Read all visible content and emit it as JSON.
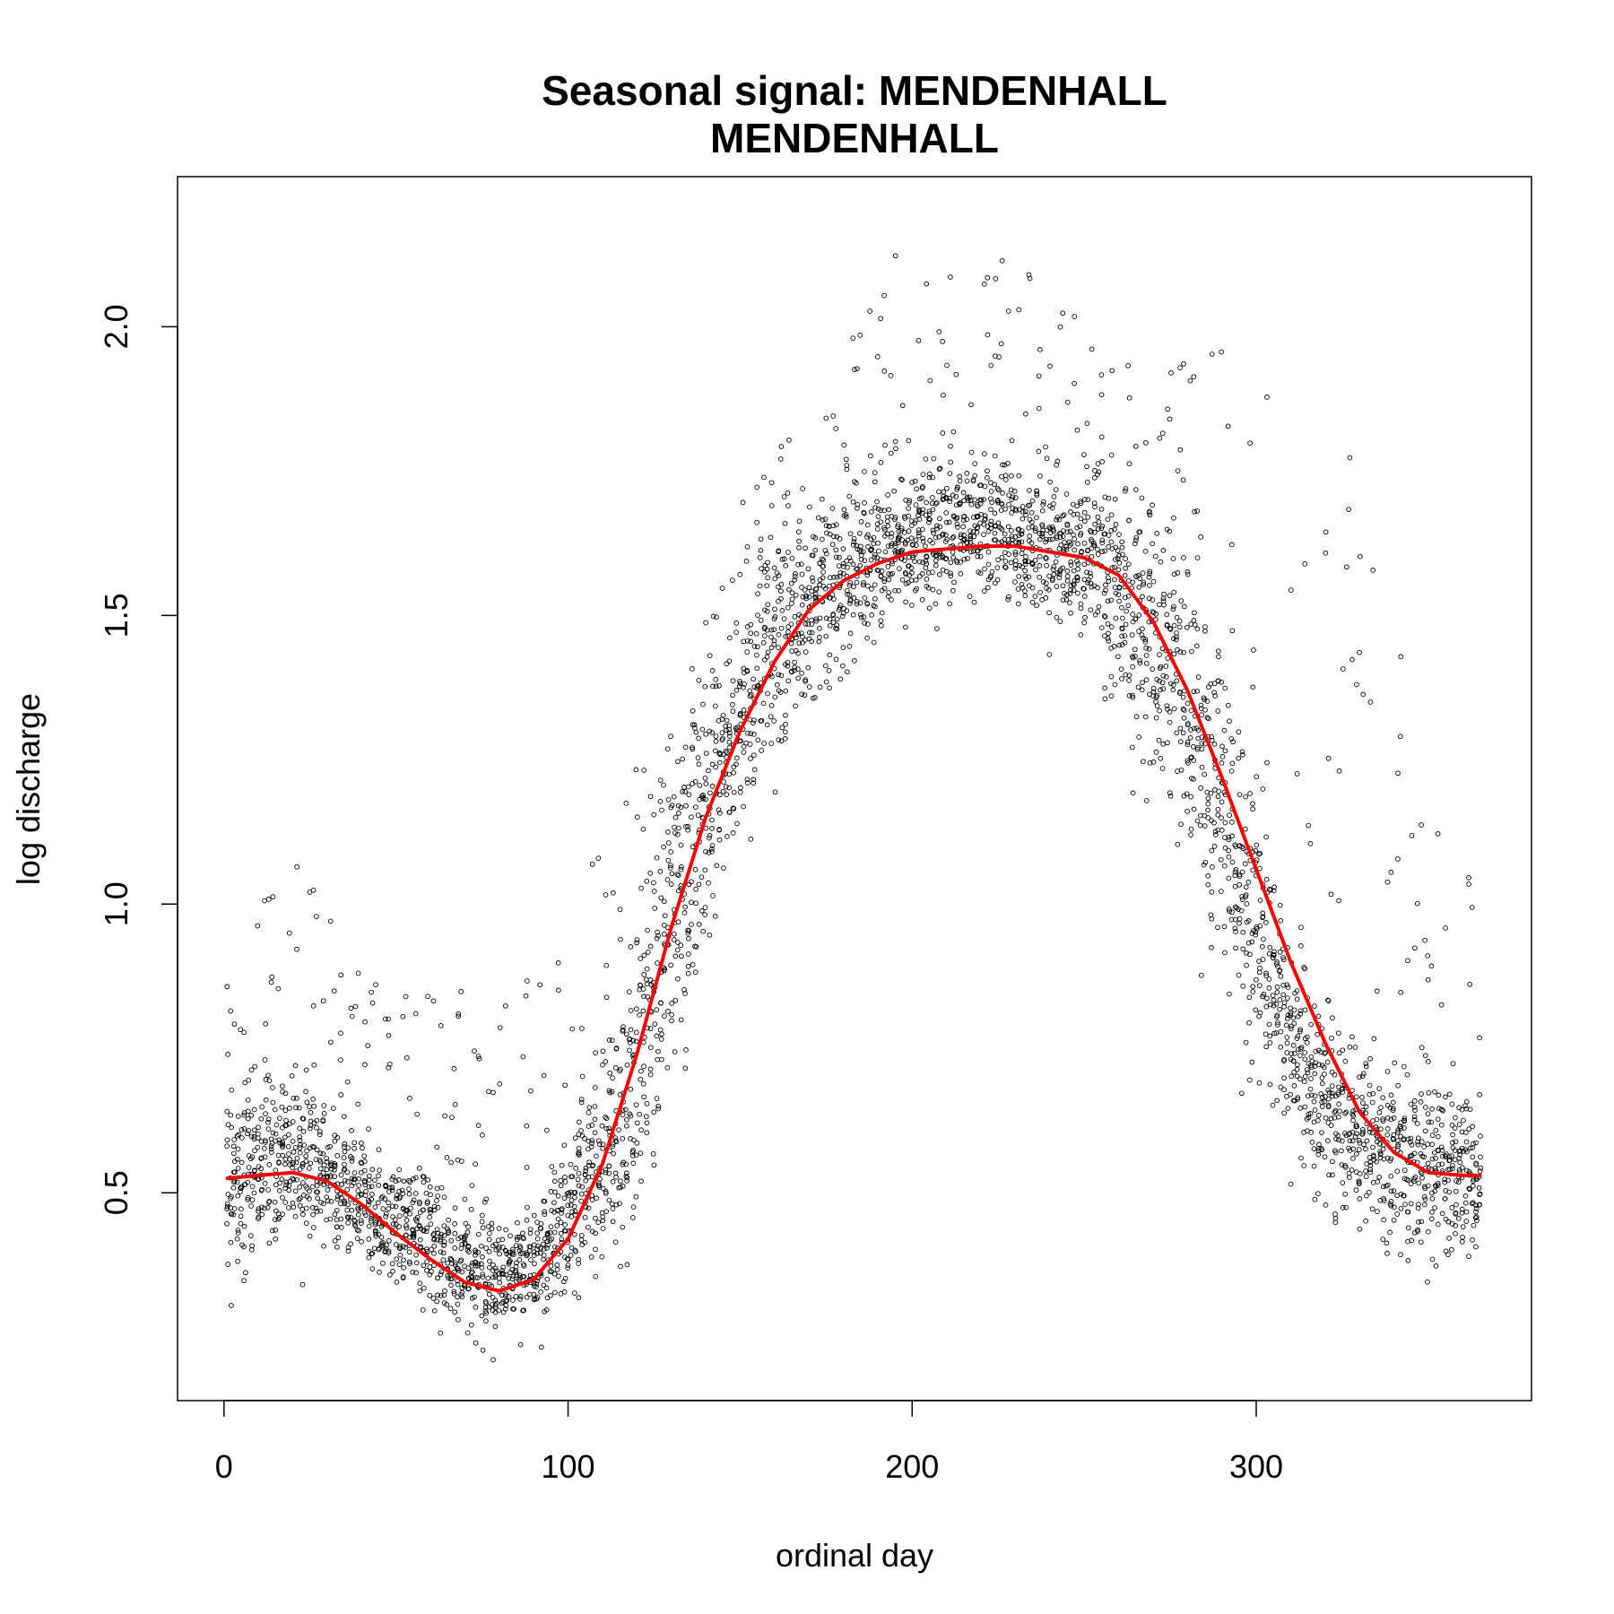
{
  "chart_data": {
    "type": "scatter",
    "title_line1": "Seasonal signal: MENDENHALL",
    "title_line2": "MENDENHALL",
    "xlabel": "ordinal day",
    "ylabel": "log discharge",
    "xlim": [
      -13.5,
      380
    ],
    "ylim": [
      0.14,
      2.26
    ],
    "x_ticks": [
      0,
      100,
      200,
      300
    ],
    "x_tick_labels": [
      "0",
      "100",
      "200",
      "300"
    ],
    "y_ticks": [
      0.5,
      1.0,
      1.5,
      2.0
    ],
    "y_tick_labels": [
      "0.5",
      "1.0",
      "1.5",
      "2.0"
    ],
    "grid": false,
    "colors": {
      "points": "#000000",
      "smooth_line": "#ff0000"
    },
    "series": [
      {
        "kind": "points",
        "note": "approximately 10000 daily observations; envelope given as [day, lower, typical, upper] in log discharge",
        "envelope": [
          [
            1,
            0.25,
            0.52,
            0.95
          ],
          [
            15,
            0.3,
            0.55,
            1.05
          ],
          [
            25,
            0.32,
            0.55,
            1.1
          ],
          [
            40,
            0.3,
            0.48,
            0.9
          ],
          [
            60,
            0.24,
            0.42,
            0.85
          ],
          [
            75,
            0.2,
            0.36,
            0.85
          ],
          [
            85,
            0.22,
            0.35,
            0.85
          ],
          [
            100,
            0.24,
            0.45,
            1.0
          ],
          [
            115,
            0.3,
            0.6,
            1.15
          ],
          [
            130,
            0.45,
            0.95,
            1.4
          ],
          [
            145,
            0.9,
            1.25,
            1.65
          ],
          [
            160,
            1.1,
            1.45,
            1.8
          ],
          [
            175,
            1.3,
            1.55,
            1.85
          ],
          [
            190,
            1.4,
            1.6,
            2.15
          ],
          [
            210,
            1.45,
            1.65,
            2.1
          ],
          [
            225,
            1.45,
            1.65,
            2.12
          ],
          [
            240,
            1.4,
            1.62,
            2.1
          ],
          [
            255,
            1.3,
            1.6,
            1.98
          ],
          [
            270,
            1.05,
            1.45,
            1.95
          ],
          [
            285,
            0.8,
            1.25,
            1.95
          ],
          [
            300,
            0.55,
            0.95,
            2.0
          ],
          [
            315,
            0.42,
            0.7,
            1.8
          ],
          [
            330,
            0.35,
            0.6,
            1.8
          ],
          [
            345,
            0.3,
            0.55,
            1.4
          ],
          [
            365,
            0.25,
            0.52,
            1.1
          ]
        ]
      },
      {
        "kind": "smooth",
        "x": [
          1,
          10,
          20,
          30,
          40,
          50,
          60,
          70,
          80,
          90,
          100,
          110,
          120,
          130,
          140,
          150,
          160,
          170,
          180,
          190,
          200,
          210,
          220,
          230,
          240,
          250,
          260,
          270,
          280,
          290,
          300,
          310,
          320,
          330,
          340,
          350,
          360,
          365
        ],
        "y": [
          0.525,
          0.53,
          0.535,
          0.52,
          0.48,
          0.43,
          0.385,
          0.345,
          0.33,
          0.35,
          0.42,
          0.55,
          0.74,
          0.96,
          1.15,
          1.3,
          1.42,
          1.51,
          1.56,
          1.59,
          1.61,
          1.615,
          1.62,
          1.62,
          1.61,
          1.6,
          1.57,
          1.49,
          1.37,
          1.22,
          1.06,
          0.9,
          0.76,
          0.64,
          0.57,
          0.535,
          0.53,
          0.53
        ]
      }
    ]
  }
}
